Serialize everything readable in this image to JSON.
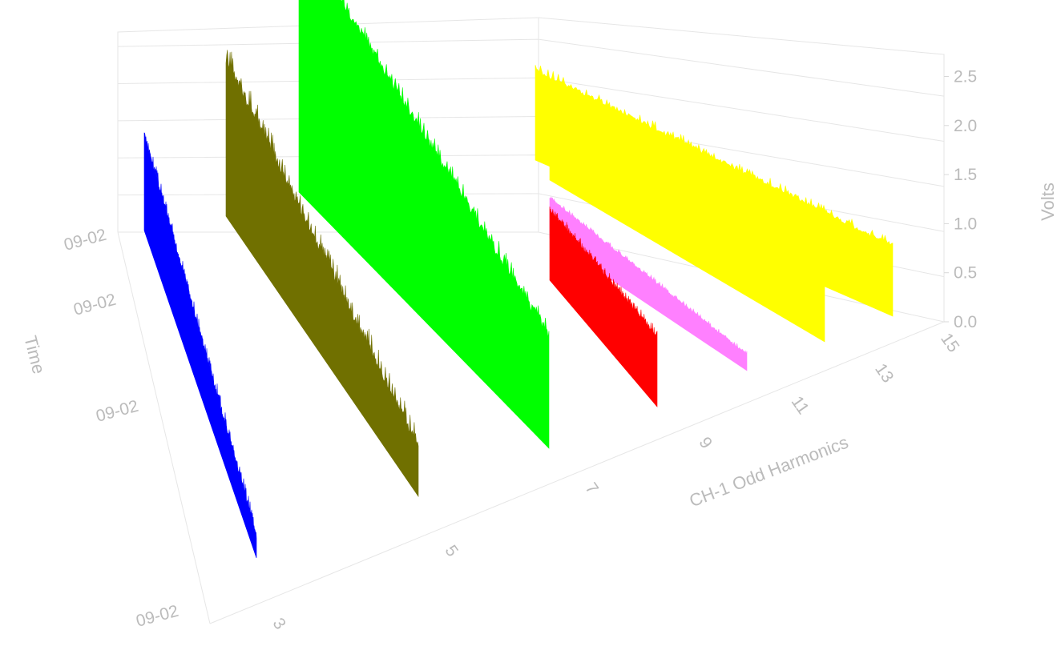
{
  "chart_data": {
    "type": "3d-bar",
    "title": "",
    "xlabel": "CH-1 Odd Harmonics",
    "ylabel": "Time",
    "zlabel": "Volts",
    "x_ticks": [
      "3",
      "5",
      "7",
      "9",
      "11",
      "13",
      "15"
    ],
    "y_ticks": [
      "09-02",
      "09-02",
      "09-02",
      "09-02"
    ],
    "z_ticks": [
      "0.0",
      "0.5",
      "1.0",
      "1.5",
      "2.0",
      "2.5"
    ],
    "zlim": [
      0,
      2.75
    ],
    "grid": true,
    "series": [
      {
        "harmonic": 3,
        "color": "#0000ff",
        "start_volts": 0.95,
        "end_volts": 0.2,
        "spike_volts": 0.15
      },
      {
        "harmonic": 5,
        "color": "#707000",
        "start_volts": 1.55,
        "end_volts": 0.45,
        "spike_volts": 0.25
      },
      {
        "harmonic": 7,
        "color": "#00ff00",
        "start_volts": 2.6,
        "end_volts": 1.1,
        "spike_volts": 0.2
      },
      {
        "harmonic": 9,
        "color": "#ff0000",
        "start_volts": 0.7,
        "end_volts": 0.7,
        "spike_volts": 0.1
      },
      {
        "harmonic": 11,
        "color": "#ff80ff",
        "start_volts": 0.4,
        "end_volts": 0.15,
        "spike_volts": 0.05
      },
      {
        "harmonic": 13,
        "color": "#ffff00",
        "start_volts": 0.85,
        "end_volts": 0.7,
        "spike_volts": 0.1
      },
      {
        "harmonic": 15,
        "color": "#ffff00",
        "start_volts": 0.9,
        "end_volts": 0.7,
        "spike_volts": 0.1
      }
    ]
  }
}
